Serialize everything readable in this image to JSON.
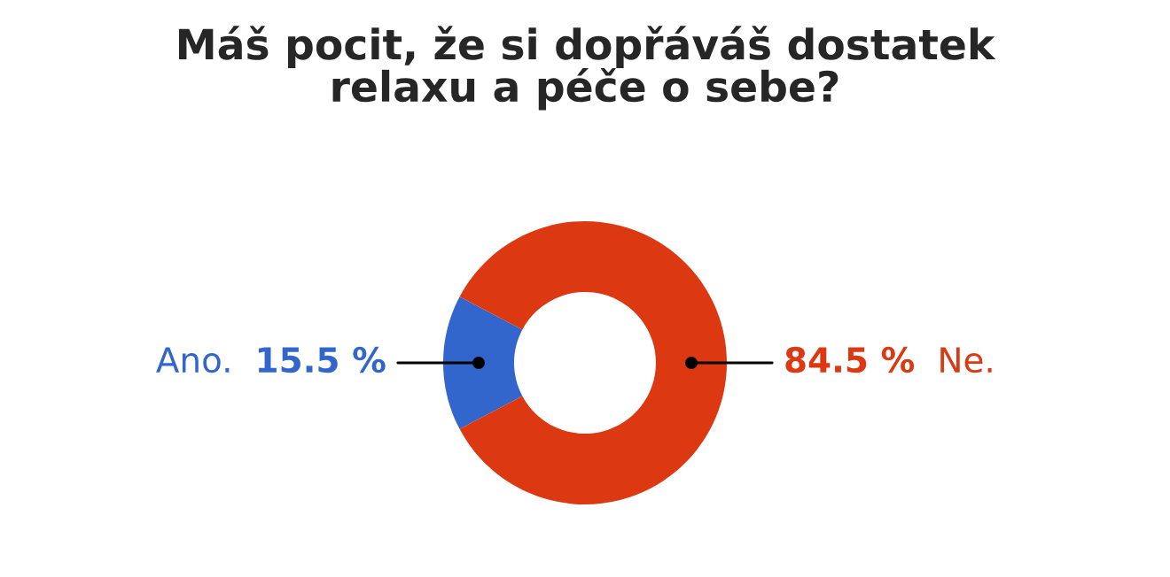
{
  "chart_data": {
    "type": "donut",
    "title": "Máš pocit, že si dopřáváš dostatek\nrelaxu a péče o sebe?",
    "categories": [
      "Ano.",
      "Ne."
    ],
    "values": [
      15.5,
      84.5
    ],
    "colors": [
      "#3366cc",
      "#dc3912"
    ],
    "value_labels": [
      "15.5 %",
      "84.5 %"
    ],
    "legend": false
  }
}
